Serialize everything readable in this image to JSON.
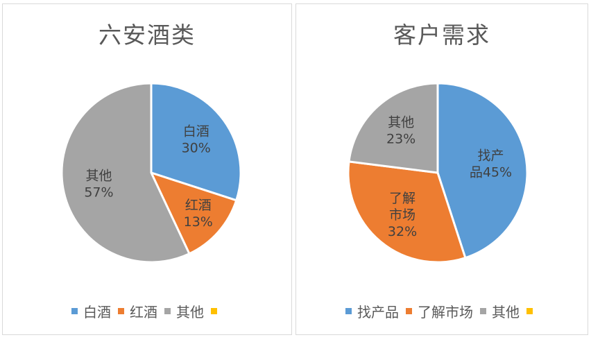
{
  "chart_data": [
    {
      "type": "pie",
      "title": "六安酒类",
      "categories": [
        "白酒",
        "红酒",
        "其他"
      ],
      "values": [
        30,
        13,
        57
      ],
      "data_labels": [
        [
          "白酒",
          "30%"
        ],
        [
          "红酒",
          "13%"
        ],
        [
          "其他",
          "57%"
        ]
      ],
      "colors": [
        "#5b9bd5",
        "#ed7d31",
        "#a5a5a5"
      ],
      "legend": [
        "白酒",
        "红酒",
        "其他",
        ""
      ],
      "legend_colors": [
        "#5b9bd5",
        "#ed7d31",
        "#a5a5a5",
        "#ffc000"
      ],
      "legend_position": "bottom"
    },
    {
      "type": "pie",
      "title": "客户需求",
      "categories": [
        "找产品",
        "了解市场",
        "其他"
      ],
      "values": [
        45,
        32,
        23
      ],
      "data_labels": [
        [
          "找产",
          "品45%"
        ],
        [
          "了解",
          "市场",
          "32%"
        ],
        [
          "其他",
          "23%"
        ]
      ],
      "colors": [
        "#5b9bd5",
        "#ed7d31",
        "#a5a5a5"
      ],
      "legend": [
        "找产品",
        "了解市场",
        "其他",
        ""
      ],
      "legend_colors": [
        "#5b9bd5",
        "#ed7d31",
        "#a5a5a5",
        "#ffc000"
      ],
      "legend_position": "bottom"
    }
  ]
}
